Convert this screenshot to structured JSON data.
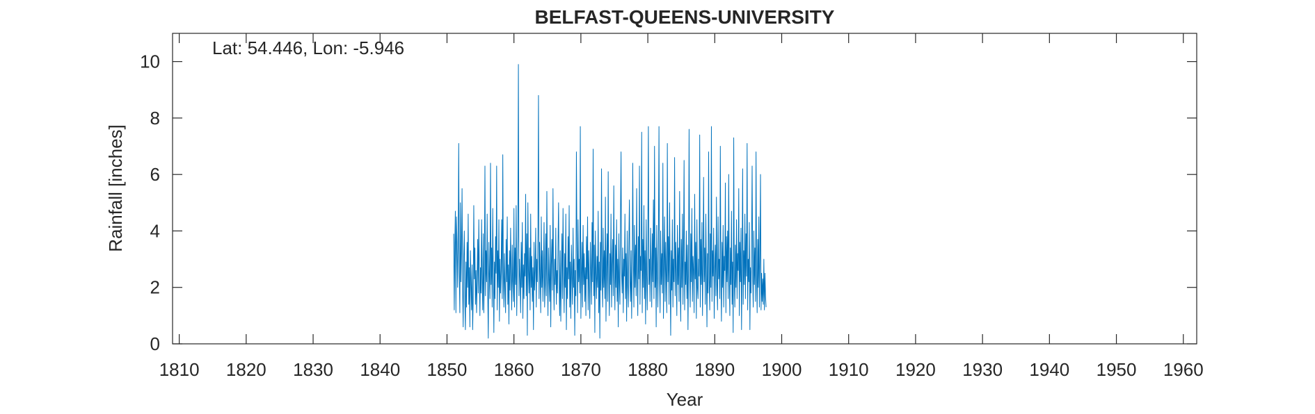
{
  "chart_data": {
    "type": "line",
    "title": "BELFAST-QUEENS-UNIVERSITY",
    "annotation": "Lat: 54.446, Lon: -5.946",
    "xlabel": "Year",
    "ylabel": "Rainfall [inches]",
    "xlim": [
      1809,
      1962
    ],
    "ylim": [
      0,
      11
    ],
    "xticks": [
      1810,
      1820,
      1830,
      1840,
      1850,
      1860,
      1870,
      1880,
      1890,
      1900,
      1910,
      1920,
      1930,
      1940,
      1950,
      1960
    ],
    "yticks": [
      0,
      2,
      4,
      6,
      8,
      10
    ],
    "grid": false,
    "series": [
      {
        "color": "#0072BD",
        "line_width": 1,
        "x_start": 1851.0,
        "step": 0.0833333,
        "values": [
          3.9,
          1.2,
          3.5,
          4.7,
          1.1,
          4.5,
          3.6,
          2.0,
          3.4,
          7.1,
          2.5,
          1.1,
          5.0,
          2.2,
          3.3,
          5.5,
          1.9,
          0.6,
          3.1,
          4.0,
          1.5,
          0.5,
          2.9,
          1.3,
          3.6,
          2.0,
          4.6,
          1.4,
          2.7,
          0.6,
          3.3,
          2.2,
          1.2,
          2.8,
          0.5,
          1.6,
          4.9,
          2.3,
          3.4,
          1.4,
          2.6,
          1.1,
          2.2,
          3.7,
          1.8,
          4.4,
          2.5,
          1.0,
          2.7,
          1.8,
          4.4,
          2.3,
          1.2,
          3.9,
          1.1,
          2.6,
          6.3,
          1.7,
          3.3,
          2.2,
          4.6,
          1.9,
          0.2,
          3.6,
          2.4,
          1.6,
          6.4,
          2.1,
          3.4,
          1.3,
          4.8,
          2.5,
          0.4,
          2.9,
          1.6,
          3.8,
          2.5,
          6.3,
          1.2,
          3.3,
          2.0,
          4.4,
          0.8,
          3.0,
          1.8,
          2.6,
          4.4,
          1.6,
          6.7,
          2.5,
          1.3,
          3.2,
          2.0,
          1.1,
          3.7,
          2.2,
          4.5,
          1.4,
          2.8,
          0.7,
          3.3,
          1.9,
          4.1,
          2.5,
          1.2,
          3.5,
          2.2,
          1.5,
          4.8,
          1.3,
          3.4,
          2.1,
          4.9,
          1.0,
          2.6,
          3.8,
          9.9,
          1.7,
          3.0,
          2.3,
          1.1,
          3.6,
          2.0,
          4.3,
          0.9,
          2.8,
          1.6,
          3.2,
          2.4,
          5.3,
          1.7,
          3.9,
          0.3,
          5.0,
          2.6,
          1.8,
          3.4,
          1.2,
          4.6,
          2.0,
          3.1,
          1.5,
          2.7,
          0.5,
          3.6,
          1.9,
          2.6,
          4.1,
          1.3,
          3.0,
          2.2,
          4.0,
          8.8,
          1.6,
          3.6,
          2.4,
          1.1,
          4.5,
          2.0,
          3.3,
          1.5,
          2.7,
          4.3,
          1.3,
          2.1,
          3.9,
          1.7,
          5.4,
          2.5,
          1.0,
          3.4,
          2.3,
          1.5,
          4.2,
          0.6,
          2.8,
          3.7,
          1.9,
          5.5,
          2.4,
          1.2,
          3.0,
          2.1,
          4.1,
          1.4,
          2.6,
          1.8,
          3.5,
          5.0,
          2.2,
          1.0,
          3.3,
          0.8,
          2.5,
          3.9,
          1.6,
          4.8,
          2.4,
          1.1,
          3.2,
          2.0,
          4.6,
          0.5,
          2.7,
          1.6,
          3.8,
          2.3,
          4.9,
          1.3,
          2.9,
          0.9,
          3.5,
          2.4,
          1.4,
          4.1,
          2.0,
          3.0,
          0.3,
          2.6,
          1.7,
          6.8,
          3.4,
          1.1,
          4.4,
          2.2,
          3.0,
          1.8,
          7.7,
          0.9,
          2.5,
          3.6,
          1.3,
          4.2,
          2.1,
          3.2,
          1.5,
          2.7,
          1.0,
          3.8,
          2.3,
          4.5,
          1.2,
          3.3,
          2.0,
          0.9,
          3.6,
          2.6,
          1.4,
          4.3,
          2.2,
          6.9,
          1.7,
          3.5,
          0.4,
          4.0,
          2.5,
          1.6,
          3.1,
          2.0,
          4.7,
          1.1,
          2.9,
          0.2,
          3.6,
          1.9,
          6.2,
          2.4,
          1.3,
          4.1,
          2.0,
          3.3,
          1.6,
          5.2,
          0.8,
          2.7,
          3.9,
          1.5,
          6.1,
          2.3,
          1.0,
          3.2,
          2.1,
          4.6,
          1.3,
          2.8,
          3.7,
          1.7,
          5.6,
          2.4,
          1.2,
          3.5,
          2.0,
          4.4,
          1.5,
          3.0,
          0.6,
          3.9,
          2.2,
          1.4,
          4.5,
          6.8,
          2.5,
          1.8,
          3.4,
          1.1,
          3.0,
          2.4,
          4.6,
          1.6,
          3.2,
          0.8,
          4.0,
          2.1,
          1.3,
          3.6,
          5.1,
          2.2,
          1.5,
          3.3,
          0.9,
          2.6,
          6.4,
          3.0,
          1.3,
          4.2,
          2.0,
          3.5,
          1.7,
          5.5,
          2.4,
          1.0,
          3.8,
          2.3,
          6.3,
          1.4,
          3.1,
          2.6,
          7.5,
          1.1,
          3.7,
          2.0,
          4.9,
          1.6,
          3.3,
          0.7,
          4.4,
          2.5,
          1.2,
          3.6,
          7.7,
          2.1,
          3.0,
          1.5,
          4.1,
          2.8,
          1.3,
          3.9,
          2.2,
          5.1,
          1.6,
          7.0,
          2.0,
          3.4,
          0.6,
          4.2,
          2.6,
          1.3,
          3.5,
          7.7,
          2.3,
          1.1,
          4.0,
          2.1,
          3.2,
          1.8,
          6.4,
          0.9,
          2.8,
          4.5,
          1.5,
          3.6,
          2.4,
          1.1,
          7.1,
          2.2,
          3.8,
          1.4,
          5.0,
          2.6,
          0.3,
          3.3,
          1.9,
          4.4,
          1.3,
          3.0,
          2.2,
          6.6,
          1.7,
          3.6,
          2.5,
          1.0,
          4.2,
          2.1,
          3.4,
          1.5,
          5.4,
          2.3,
          0.8,
          3.7,
          2.0,
          4.6,
          1.4,
          3.2,
          6.5,
          1.2,
          2.9,
          2.1,
          4.0,
          1.6,
          3.5,
          0.5,
          2.7,
          7.6,
          2.4,
          1.3,
          3.9,
          2.2,
          4.8,
          1.5,
          3.1,
          2.6,
          1.1,
          5.3,
          2.3,
          3.6,
          0.9,
          4.4,
          2.0,
          1.6,
          3.0,
          2.4,
          7.4,
          1.3,
          3.7,
          2.1,
          4.3,
          1.0,
          2.8,
          5.9,
          2.2,
          3.4,
          1.4,
          4.6,
          2.5,
          0.6,
          3.2,
          1.8,
          6.8,
          2.3,
          1.2,
          3.9,
          2.0,
          7.7,
          1.5,
          3.3,
          2.4,
          4.1,
          0.9,
          2.6,
          3.5,
          1.7,
          5.2,
          2.1,
          1.2,
          4.5,
          2.3,
          3.0,
          1.6,
          7.0,
          2.4,
          0.8,
          3.6,
          2.0,
          4.2,
          1.3,
          3.1,
          2.6,
          5.7,
          1.1,
          3.8,
          2.2,
          4.0,
          1.6,
          6.0,
          2.5,
          1.0,
          3.4,
          2.1,
          4.7,
          1.4,
          2.9,
          0.4,
          7.3,
          2.3,
          1.3,
          3.5,
          2.0,
          4.4,
          1.6,
          3.2,
          2.6,
          5.5,
          1.0,
          3.6,
          2.2,
          4.1,
          0.5,
          2.8,
          6.2,
          1.4,
          3.3,
          2.1,
          4.6,
          1.6,
          3.9,
          2.4,
          7.1,
          1.2,
          3.0,
          2.2,
          4.3,
          0.5,
          2.7,
          1.8,
          3.6,
          6.3,
          2.3,
          1.3,
          4.0,
          2.1,
          3.4,
          1.5,
          6.8,
          2.4,
          1.1,
          3.7,
          2.0,
          4.5,
          1.3,
          3.1,
          6.0,
          1.2,
          2.5,
          1.5,
          2.3,
          1.4,
          3.0,
          1.2,
          2.5,
          1.7,
          1.3
        ]
      }
    ]
  }
}
